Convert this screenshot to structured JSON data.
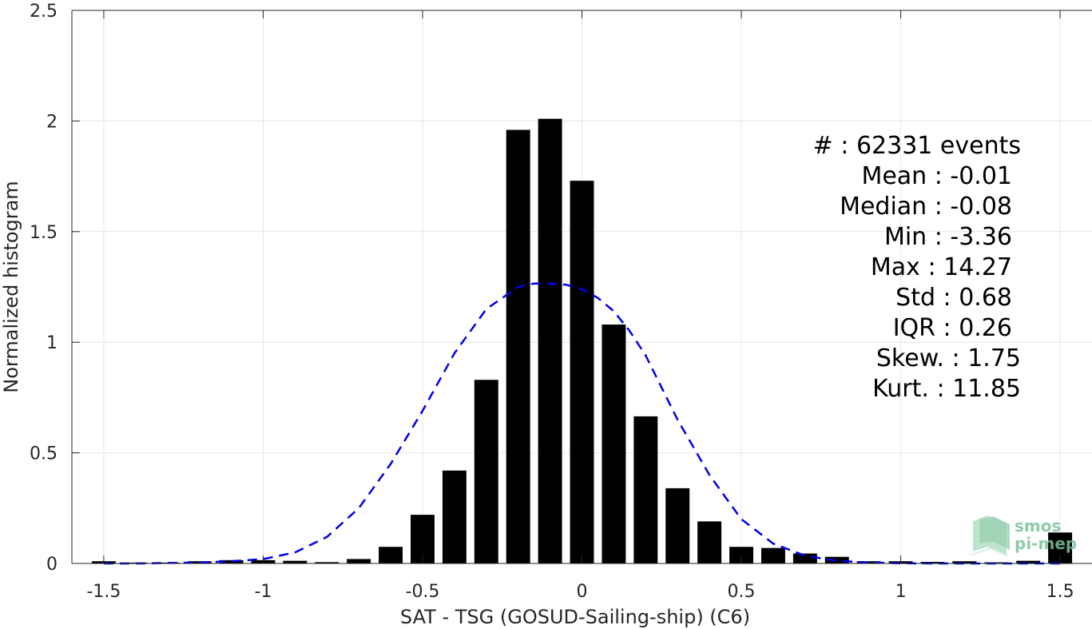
{
  "chart_data": {
    "type": "bar",
    "xlabel": "SAT - TSG (GOSUD-Sailing-ship) (C6)",
    "ylabel": "Normalized histogram",
    "xlim": [
      -1.6,
      1.6
    ],
    "ylim": [
      0,
      2.5
    ],
    "xticks": [
      -1.5,
      -1,
      -0.5,
      0,
      0.5,
      1,
      1.5
    ],
    "xtick_labels": [
      "-1.5",
      "-1",
      "-0.5",
      "0",
      "0.5",
      "1",
      "1.5"
    ],
    "yticks": [
      0,
      0.5,
      1,
      1.5,
      2,
      2.5
    ],
    "ytick_labels": [
      "0",
      "0.5",
      "1",
      "1.5",
      "2",
      "2.5"
    ],
    "grid": true,
    "bar_width": 0.075,
    "bars": {
      "x": [
        -1.5,
        -1.4,
        -1.3,
        -1.2,
        -1.1,
        -1.0,
        -0.9,
        -0.8,
        -0.7,
        -0.6,
        -0.5,
        -0.4,
        -0.3,
        -0.2,
        -0.1,
        0.0,
        0.1,
        0.2,
        0.3,
        0.4,
        0.5,
        0.6,
        0.7,
        0.8,
        0.9,
        1.0,
        1.1,
        1.2,
        1.3,
        1.4,
        1.5
      ],
      "values": [
        0.01,
        0.004,
        0.004,
        0.01,
        0.015,
        0.015,
        0.012,
        0.006,
        0.02,
        0.075,
        0.22,
        0.42,
        0.83,
        1.96,
        2.01,
        1.73,
        1.08,
        0.665,
        0.34,
        0.19,
        0.075,
        0.07,
        0.045,
        0.03,
        0.01,
        0.01,
        0.007,
        0.01,
        0.005,
        0.012,
        0.14
      ],
      "color": "#000000"
    },
    "fit_curve": {
      "style": "dashed",
      "color": "#0000ee",
      "x": [
        -1.5,
        -1.4,
        -1.3,
        -1.2,
        -1.1,
        -1.0,
        -0.9,
        -0.8,
        -0.7,
        -0.6,
        -0.5,
        -0.4,
        -0.3,
        -0.2,
        -0.15,
        -0.1,
        -0.05,
        0.0,
        0.05,
        0.1,
        0.15,
        0.2,
        0.3,
        0.4,
        0.5,
        0.6,
        0.7,
        0.8,
        0.9,
        1.0,
        1.1,
        1.2,
        1.3,
        1.4,
        1.5
      ],
      "y": [
        0.0,
        0.0,
        0.002,
        0.004,
        0.01,
        0.02,
        0.05,
        0.12,
        0.25,
        0.45,
        0.69,
        0.95,
        1.15,
        1.25,
        1.265,
        1.265,
        1.26,
        1.24,
        1.2,
        1.14,
        1.05,
        0.94,
        0.65,
        0.4,
        0.2,
        0.09,
        0.035,
        0.012,
        0.004,
        0.001,
        0.0,
        0.0,
        0.0,
        0.0,
        0.0
      ]
    },
    "stats": [
      "#  : 62331 events",
      "Mean : -0.01",
      "Median : -0.08",
      "Min : -3.36",
      "Max : 14.27",
      "Std : 0.68",
      "IQR : 0.26",
      "Skew. : 1.75",
      "Kurt. : 11.85"
    ]
  },
  "logo": {
    "line1": "smos",
    "line2": "pi-mep",
    "color": "#7cc39a"
  }
}
